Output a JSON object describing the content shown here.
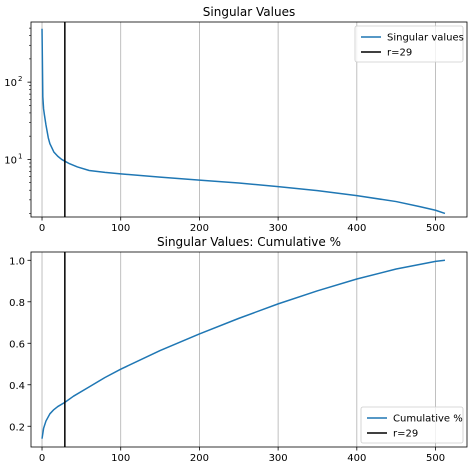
{
  "colors": {
    "series": "#1f77b4",
    "marker_line": "#000000",
    "grid": "#b0b0b0"
  },
  "chart_data": [
    {
      "type": "line",
      "title": "Singular Values",
      "xlabel": "",
      "ylabel": "",
      "yscale": "log",
      "xlim": [
        -14,
        540
      ],
      "ylim": [
        1.8,
        600
      ],
      "xticks": [
        0,
        100,
        200,
        300,
        400,
        500
      ],
      "xtick_labels": [
        "0",
        "100",
        "200",
        "300",
        "400",
        "500"
      ],
      "yticks": [
        10,
        100
      ],
      "ytick_labels_base": [
        "10",
        "10"
      ],
      "ytick_labels_exp": [
        "1",
        "2"
      ],
      "grid": "vertical (x axis)",
      "legend_position": "upper right",
      "series": [
        {
          "name": "Singular values",
          "x": [
            0,
            1,
            2,
            3,
            5,
            8,
            10,
            12,
            15,
            20,
            25,
            29,
            35,
            45,
            60,
            80,
            100,
            150,
            200,
            250,
            300,
            350,
            400,
            450,
            480,
            500,
            512
          ],
          "y": [
            490,
            65,
            45,
            38,
            28,
            19,
            16,
            14.5,
            12.5,
            11,
            10,
            9.5,
            8.8,
            8.0,
            7.2,
            6.8,
            6.5,
            5.9,
            5.4,
            4.95,
            4.45,
            3.95,
            3.4,
            2.85,
            2.45,
            2.2,
            2.0
          ]
        },
        {
          "name": "r=29",
          "x": [
            29,
            29
          ],
          "y": [
            1.8,
            600
          ]
        }
      ]
    },
    {
      "type": "line",
      "title": "Singular Values: Cumulative %",
      "xlabel": "",
      "ylabel": "",
      "xlim": [
        -14,
        540
      ],
      "ylim": [
        0.1,
        1.04
      ],
      "xticks": [
        0,
        100,
        200,
        300,
        400,
        500
      ],
      "xtick_labels": [
        "0",
        "100",
        "200",
        "300",
        "400",
        "500"
      ],
      "yticks": [
        0.2,
        0.4,
        0.6,
        0.8,
        1.0
      ],
      "ytick_labels": [
        "0.2",
        "0.4",
        "0.6",
        "0.8",
        "1.0"
      ],
      "grid": "vertical (x axis)",
      "legend_position": "lower right",
      "series": [
        {
          "name": "Cumulative %",
          "x": [
            0,
            2,
            5,
            10,
            15,
            20,
            29,
            40,
            60,
            80,
            100,
            150,
            200,
            250,
            300,
            350,
            400,
            450,
            500,
            512
          ],
          "y": [
            0.14,
            0.19,
            0.225,
            0.26,
            0.28,
            0.295,
            0.315,
            0.345,
            0.39,
            0.435,
            0.475,
            0.565,
            0.645,
            0.72,
            0.79,
            0.853,
            0.91,
            0.958,
            0.995,
            1.0
          ]
        },
        {
          "name": "r=29",
          "x": [
            29,
            29
          ],
          "y": [
            0.1,
            1.04
          ]
        }
      ]
    }
  ]
}
